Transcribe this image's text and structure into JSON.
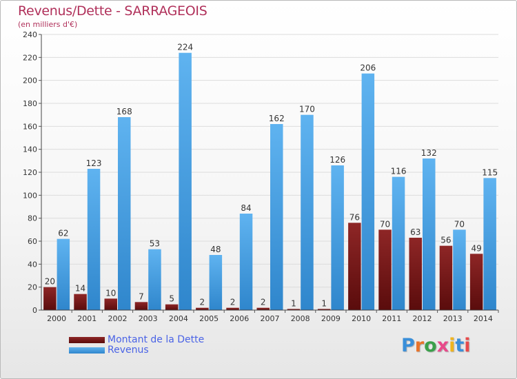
{
  "header": {
    "title": "Revenus/Dette - SARRAGEOIS",
    "subtitle": "(en milliers d'€)"
  },
  "logo": {
    "letters": [
      "P",
      "r",
      "o",
      "x",
      "i",
      "t",
      "i"
    ],
    "colors": [
      "#3a8fd9",
      "#e8732a",
      "#3aa04a",
      "#e84a8a",
      "#f0b41e",
      "#3a8fd9",
      "#e84a4a"
    ]
  },
  "colors": {
    "dette": "#7a1818",
    "revenus": "#3f9be0",
    "title": "#b0305a",
    "legend_text": "#4a63e6"
  },
  "chart_data": {
    "type": "bar",
    "title": "Revenus/Dette - SARRAGEOIS",
    "subtitle": "(en milliers d'€)",
    "categories": [
      "2000",
      "2001",
      "2002",
      "2003",
      "2004",
      "2005",
      "2006",
      "2007",
      "2008",
      "2009",
      "2010",
      "2011",
      "2012",
      "2013",
      "2014"
    ],
    "series": [
      {
        "name": "Montant de la Dette",
        "values": [
          20,
          14,
          10,
          7,
          5,
          2,
          2,
          2,
          1,
          1,
          76,
          70,
          63,
          56,
          49
        ]
      },
      {
        "name": "Revenus",
        "values": [
          62,
          123,
          168,
          53,
          224,
          48,
          84,
          162,
          170,
          126,
          206,
          116,
          132,
          70,
          115
        ]
      }
    ],
    "ylim": [
      0,
      240
    ],
    "yticks": [
      0,
      20,
      40,
      60,
      80,
      100,
      120,
      140,
      160,
      180,
      200,
      220,
      240
    ],
    "grid": true,
    "legend_position": "bottom-left"
  }
}
